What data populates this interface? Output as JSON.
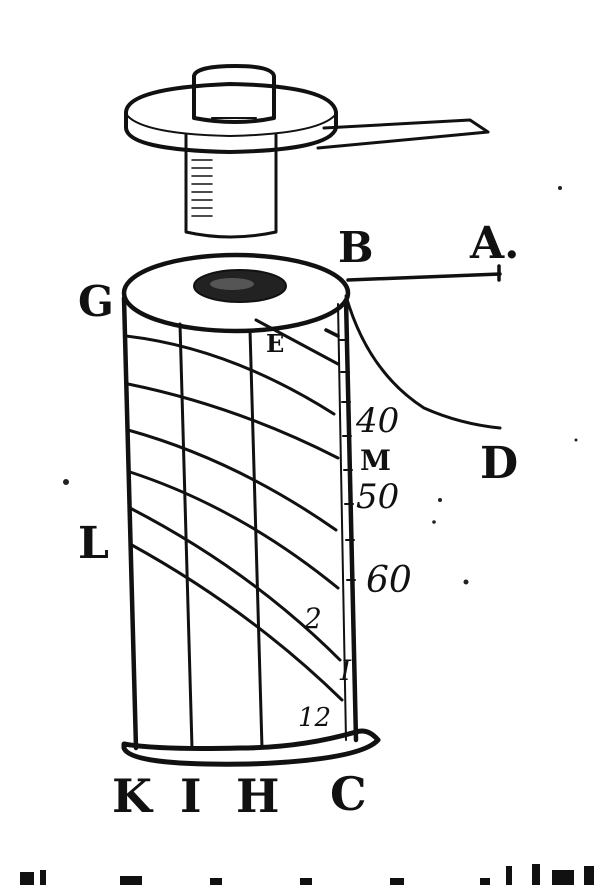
{
  "labels": {
    "A": "A.",
    "B": "B",
    "G": "G",
    "E": "E",
    "M": "M",
    "D": "D",
    "L": "L",
    "K": "K",
    "I": "I",
    "H": "H",
    "C": "C"
  },
  "scale_numbers": {
    "n40": "40",
    "n50": "50",
    "n60": "60",
    "n2": "2",
    "n1": "I",
    "n12": "12"
  },
  "footer_text": "",
  "ink_color": "#111111"
}
